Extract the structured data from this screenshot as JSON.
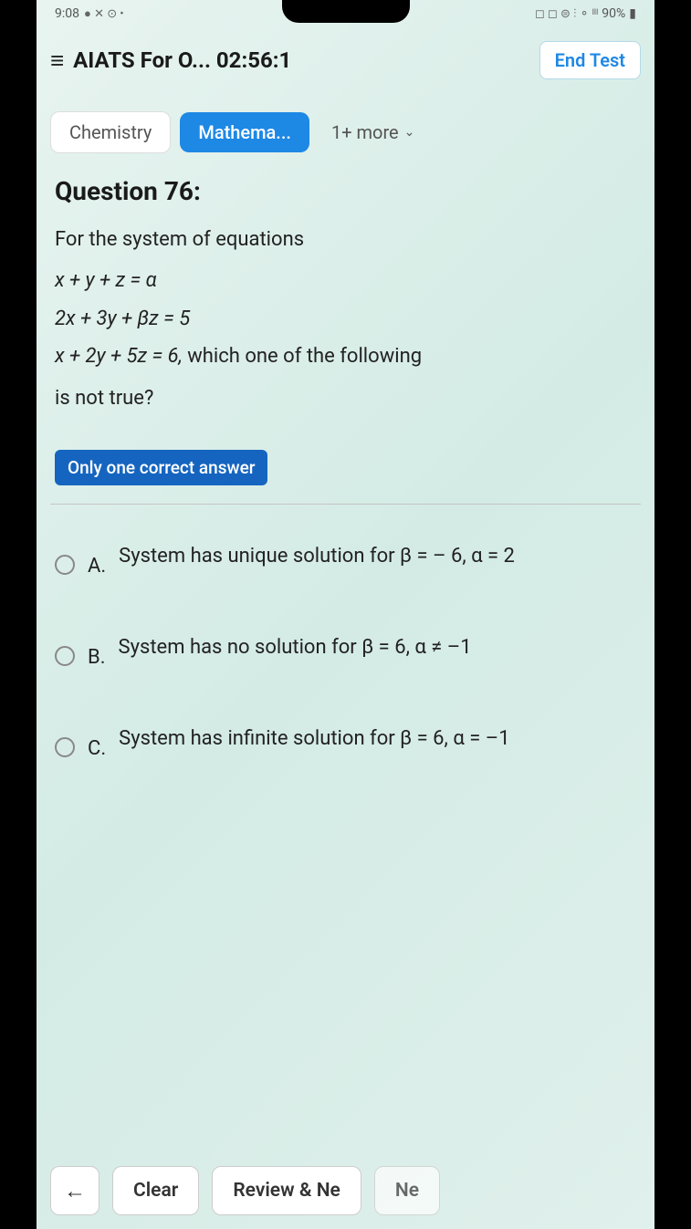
{
  "status_bar": {
    "time": "9:08",
    "battery": "90%"
  },
  "header": {
    "title": "AIATS For O... 02:56:1",
    "end_test": "End Test"
  },
  "tabs": {
    "chemistry": "Chemistry",
    "mathematics": "Mathema...",
    "more": "1+ more"
  },
  "question": {
    "title": "Question 76:",
    "intro": "For the system of equations",
    "eq1": "x + y + z = α",
    "eq2": "2x + 3y + βz = 5",
    "eq3_part1": "x + 2y + 5z = 6,",
    "eq3_part2": "which one of the following",
    "eq3_part3": "is not true?",
    "badge": "Only one correct answer"
  },
  "options": {
    "a": {
      "label": "A.",
      "text": "System has unique solution for β = – 6, α = 2"
    },
    "b": {
      "label": "B.",
      "text": "System has no solution for β = 6, α ≠ –1"
    },
    "c": {
      "label": "C.",
      "text": "System has infinite solution for β = 6, α = –1"
    }
  },
  "bottom": {
    "clear": "Clear",
    "review": "Review & Ne",
    "next": "Ne"
  },
  "colors": {
    "primary_blue": "#1e88e5",
    "badge_blue": "#1565c0",
    "text_dark": "#1a1a1a",
    "text_body": "#222222",
    "text_muted": "#555555",
    "border_light": "#cccccc",
    "bg_gradient_start": "#e8f4f0",
    "bg_gradient_end": "#d4ebe5"
  }
}
